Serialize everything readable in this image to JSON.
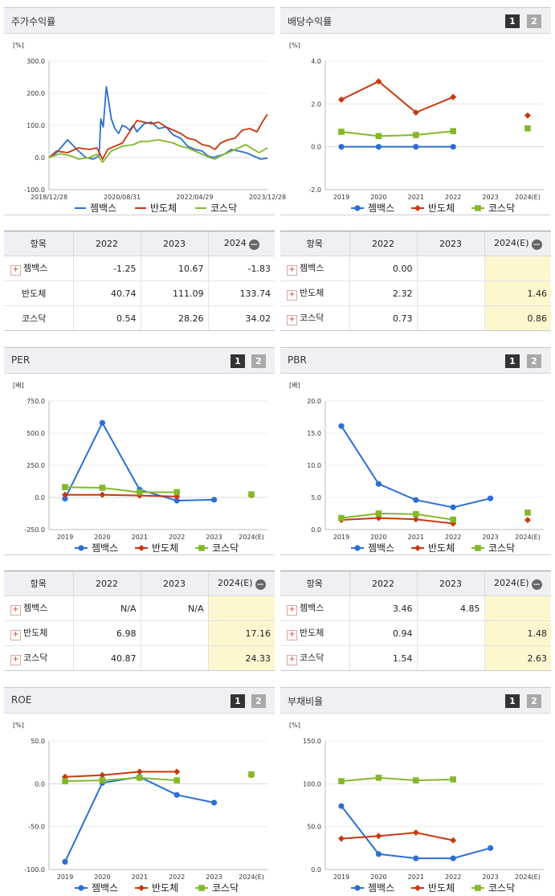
{
  "legend_names": [
    "젬백스",
    "반도체",
    "코스닥"
  ],
  "colors": [
    "#2b6fd6",
    "#c9380f",
    "#84b82a"
  ],
  "pager": {
    "one": "1",
    "two": "2"
  },
  "panels": {
    "stock": {
      "title": "주가수익률"
    },
    "dividend": {
      "title": "배당수익률"
    },
    "per": {
      "title": "PER"
    },
    "pbr": {
      "title": "PBR"
    },
    "roe": {
      "title": "ROE"
    },
    "debt": {
      "title": "부채비율"
    }
  },
  "chart_data": [
    {
      "id": "stock",
      "type": "line",
      "unit": "[%]",
      "yticks": [
        "300.0",
        "200.0",
        "100.0",
        "0.0",
        "-100.0"
      ],
      "ylim": [
        -100,
        300
      ],
      "xticks": [
        "2018/12/28",
        "2020/08/31",
        "2022/04/29",
        "2023/12/28"
      ],
      "x_range": [
        "2018/12/28",
        "2023/12/28"
      ],
      "series": [
        {
          "name": "젬백스",
          "points": [
            [
              "2018/12/28",
              0
            ],
            [
              "2019/03/01",
              15
            ],
            [
              "2019/06/01",
              55
            ],
            [
              "2019/09/01",
              20
            ],
            [
              "2019/11/01",
              0
            ],
            [
              "2020/01/01",
              -5
            ],
            [
              "2020/02/20",
              5
            ],
            [
              "2020/03/05",
              120
            ],
            [
              "2020/03/25",
              95
            ],
            [
              "2020/04/20",
              220
            ],
            [
              "2020/05/10",
              175
            ],
            [
              "2020/06/01",
              120
            ],
            [
              "2020/07/01",
              90
            ],
            [
              "2020/08/01",
              75
            ],
            [
              "2020/09/01",
              100
            ],
            [
              "2020/10/01",
              95
            ],
            [
              "2020/11/01",
              85
            ],
            [
              "2020/12/01",
              100
            ],
            [
              "2021/01/01",
              80
            ],
            [
              "2021/03/01",
              105
            ],
            [
              "2021/05/01",
              110
            ],
            [
              "2021/07/01",
              90
            ],
            [
              "2021/09/01",
              95
            ],
            [
              "2021/11/01",
              70
            ],
            [
              "2022/01/01",
              60
            ],
            [
              "2022/03/01",
              35
            ],
            [
              "2022/05/01",
              25
            ],
            [
              "2022/07/01",
              20
            ],
            [
              "2022/08/15",
              5
            ],
            [
              "2022/10/01",
              0
            ],
            [
              "2022/11/15",
              5
            ],
            [
              "2023/01/01",
              10
            ],
            [
              "2023/03/01",
              25
            ],
            [
              "2023/05/01",
              20
            ],
            [
              "2023/07/01",
              15
            ],
            [
              "2023/09/01",
              5
            ],
            [
              "2023/11/01",
              -5
            ],
            [
              "2023/12/28",
              -2
            ]
          ]
        },
        {
          "name": "반도체",
          "points": [
            [
              "2018/12/28",
              0
            ],
            [
              "2019/03/01",
              20
            ],
            [
              "2019/06/01",
              15
            ],
            [
              "2019/09/01",
              30
            ],
            [
              "2019/12/01",
              25
            ],
            [
              "2020/02/01",
              30
            ],
            [
              "2020/03/20",
              -5
            ],
            [
              "2020/05/01",
              25
            ],
            [
              "2020/07/01",
              35
            ],
            [
              "2020/09/01",
              45
            ],
            [
              "2020/11/01",
              80
            ],
            [
              "2021/01/01",
              115
            ],
            [
              "2021/03/01",
              110
            ],
            [
              "2021/05/01",
              105
            ],
            [
              "2021/07/01",
              110
            ],
            [
              "2021/09/01",
              95
            ],
            [
              "2021/11/01",
              85
            ],
            [
              "2022/01/01",
              75
            ],
            [
              "2022/03/01",
              60
            ],
            [
              "2022/05/01",
              55
            ],
            [
              "2022/07/01",
              40
            ],
            [
              "2022/09/01",
              35
            ],
            [
              "2022/10/15",
              25
            ],
            [
              "2022/12/01",
              45
            ],
            [
              "2023/02/01",
              55
            ],
            [
              "2023/04/01",
              60
            ],
            [
              "2023/06/01",
              85
            ],
            [
              "2023/08/01",
              90
            ],
            [
              "2023/10/01",
              80
            ],
            [
              "2023/11/15",
              110
            ],
            [
              "2023/12/28",
              135
            ]
          ]
        },
        {
          "name": "코스닥",
          "points": [
            [
              "2018/12/28",
              0
            ],
            [
              "2019/04/01",
              12
            ],
            [
              "2019/07/01",
              5
            ],
            [
              "2019/09/01",
              -5
            ],
            [
              "2019/12/01",
              0
            ],
            [
              "2020/02/01",
              10
            ],
            [
              "2020/03/20",
              -15
            ],
            [
              "2020/06/01",
              20
            ],
            [
              "2020/09/01",
              35
            ],
            [
              "2020/12/01",
              40
            ],
            [
              "2021/02/01",
              50
            ],
            [
              "2021/04/01",
              50
            ],
            [
              "2021/07/01",
              55
            ],
            [
              "2021/09/01",
              50
            ],
            [
              "2021/11/01",
              45
            ],
            [
              "2022/01/01",
              35
            ],
            [
              "2022/03/01",
              30
            ],
            [
              "2022/06/01",
              15
            ],
            [
              "2022/09/01",
              0
            ],
            [
              "2022/10/15",
              -5
            ],
            [
              "2022/12/01",
              5
            ],
            [
              "2023/02/01",
              15
            ],
            [
              "2023/04/01",
              25
            ],
            [
              "2023/07/01",
              40
            ],
            [
              "2023/09/01",
              25
            ],
            [
              "2023/10/20",
              15
            ],
            [
              "2023/12/28",
              30
            ]
          ]
        }
      ]
    },
    {
      "id": "dividend",
      "type": "line",
      "unit": "[%]",
      "yticks": [
        "4.0",
        "2.0",
        "0.0",
        "-2.0"
      ],
      "ylim": [
        -2,
        4
      ],
      "categories": [
        "2019",
        "2020",
        "2021",
        "2022",
        "2023",
        "2024(E)"
      ],
      "series": [
        {
          "name": "젬백스",
          "values": [
            0.0,
            0.0,
            0.0,
            0.0,
            null,
            null
          ]
        },
        {
          "name": "반도체",
          "values": [
            2.2,
            3.05,
            1.6,
            2.32,
            null,
            1.46
          ]
        },
        {
          "name": "코스닥",
          "values": [
            0.7,
            0.5,
            0.55,
            0.73,
            null,
            0.86
          ]
        }
      ]
    },
    {
      "id": "per",
      "type": "line",
      "unit": "[배]",
      "yticks": [
        "750.0",
        "500.0",
        "250.0",
        "0.0",
        "-250.0"
      ],
      "ylim": [
        -250,
        750
      ],
      "categories": [
        "2019",
        "2020",
        "2021",
        "2022",
        "2023",
        "2024(E)"
      ],
      "series": [
        {
          "name": "젬백스",
          "values": [
            -10,
            580,
            60,
            -25,
            -18,
            null
          ]
        },
        {
          "name": "반도체",
          "values": [
            20,
            20,
            15,
            6.98,
            null,
            17.16
          ]
        },
        {
          "name": "코스닥",
          "values": [
            80,
            75,
            40,
            40.87,
            null,
            24.33
          ]
        }
      ]
    },
    {
      "id": "pbr",
      "type": "line",
      "unit": "[배]",
      "yticks": [
        "20.0",
        "15.0",
        "10.0",
        "5.0",
        "0.0"
      ],
      "ylim": [
        0,
        20
      ],
      "categories": [
        "2019",
        "2020",
        "2021",
        "2022",
        "2023",
        "2024(E)"
      ],
      "series": [
        {
          "name": "젬백스",
          "values": [
            16.1,
            7.1,
            4.6,
            3.46,
            4.85,
            null
          ]
        },
        {
          "name": "반도체",
          "values": [
            1.5,
            1.8,
            1.6,
            0.94,
            null,
            1.48
          ]
        },
        {
          "name": "코스닥",
          "values": [
            1.8,
            2.5,
            2.4,
            1.54,
            null,
            2.63
          ]
        }
      ]
    },
    {
      "id": "roe",
      "type": "line",
      "unit": "[%]",
      "yticks": [
        "50.0",
        "0.0",
        "-50.0",
        "-100.0"
      ],
      "ylim": [
        -100,
        50
      ],
      "categories": [
        "2019",
        "2020",
        "2021",
        "2022",
        "2023",
        "2024(E)"
      ],
      "series": [
        {
          "name": "젬백스",
          "values": [
            -91,
            1,
            8,
            -13,
            -22,
            null
          ]
        },
        {
          "name": "반도체",
          "values": [
            8,
            10,
            14,
            14,
            null,
            10
          ]
        },
        {
          "name": "코스닥",
          "values": [
            3,
            4,
            7,
            4,
            null,
            11
          ]
        }
      ]
    },
    {
      "id": "debt",
      "type": "line",
      "unit": "[%]",
      "yticks": [
        "150.0",
        "100.0",
        "50.0",
        "0.0"
      ],
      "ylim": [
        0,
        150
      ],
      "categories": [
        "2019",
        "2020",
        "2021",
        "2022",
        "2023",
        "2024(E)"
      ],
      "series": [
        {
          "name": "젬백스",
          "values": [
            74,
            18,
            13,
            13,
            25,
            null
          ]
        },
        {
          "name": "반도체",
          "values": [
            36,
            39,
            43,
            34,
            null,
            null
          ]
        },
        {
          "name": "코스닥",
          "values": [
            103,
            107,
            104,
            105,
            null,
            null
          ]
        }
      ]
    }
  ],
  "tables": {
    "stock": {
      "header": [
        "항목",
        "2022",
        "2023",
        "2024"
      ],
      "rows": [
        {
          "label": "젬백스",
          "v": [
            "-1.25",
            "10.67",
            "-1.83"
          ]
        },
        {
          "label": "반도체",
          "v": [
            "40.74",
            "111.09",
            "133.74"
          ]
        },
        {
          "label": "코스닥",
          "v": [
            "0.54",
            "28.26",
            "34.02"
          ]
        }
      ]
    },
    "dividend": {
      "header": [
        "항목",
        "2022",
        "2023",
        "2024(E)"
      ],
      "rows": [
        {
          "label": "젬백스",
          "v": [
            "0.00",
            "",
            ""
          ]
        },
        {
          "label": "반도체",
          "v": [
            "2.32",
            "",
            "1.46"
          ]
        },
        {
          "label": "코스닥",
          "v": [
            "0.73",
            "",
            "0.86"
          ]
        }
      ]
    },
    "per": {
      "header": [
        "항목",
        "2022",
        "2023",
        "2024(E)"
      ],
      "rows": [
        {
          "label": "젬백스",
          "v": [
            "N/A",
            "N/A",
            ""
          ]
        },
        {
          "label": "반도체",
          "v": [
            "6.98",
            "",
            "17.16"
          ]
        },
        {
          "label": "코스닥",
          "v": [
            "40.87",
            "",
            "24.33"
          ]
        }
      ]
    },
    "pbr": {
      "header": [
        "항목",
        "2022",
        "2023",
        "2024(E)"
      ],
      "rows": [
        {
          "label": "젬백스",
          "v": [
            "3.46",
            "4.85",
            ""
          ]
        },
        {
          "label": "반도체",
          "v": [
            "0.94",
            "",
            "1.48"
          ]
        },
        {
          "label": "코스닥",
          "v": [
            "1.54",
            "",
            "2.63"
          ]
        }
      ]
    }
  }
}
